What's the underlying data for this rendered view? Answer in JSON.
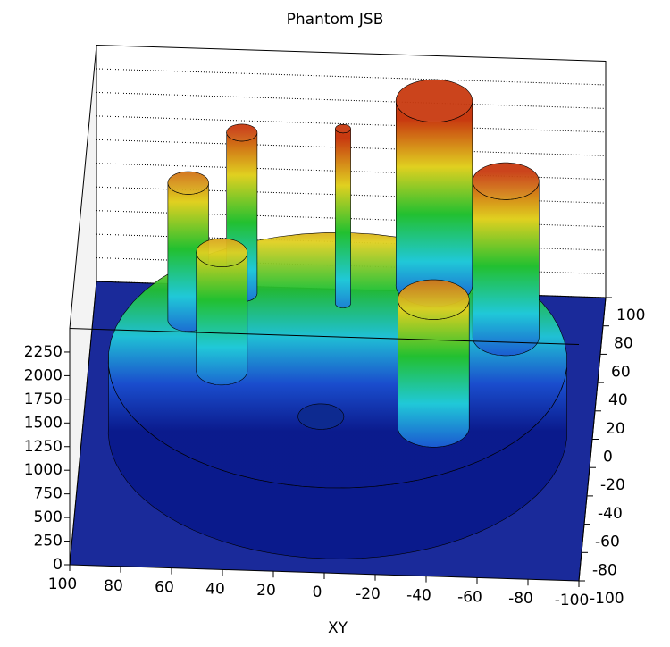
{
  "chart_data": {
    "type": "lego",
    "title": "Phantom JSB",
    "x_label": "XY",
    "xlim": [
      100,
      -100
    ],
    "ylim": [
      -100,
      100
    ],
    "zlim": [
      0,
      2500
    ],
    "xticks": [
      100,
      80,
      60,
      40,
      20,
      0,
      -20,
      -40,
      -60,
      -80,
      -100
    ],
    "yticks": [
      -100,
      -80,
      -60,
      -40,
      -20,
      0,
      20,
      40,
      60,
      80,
      100
    ],
    "zticks": [
      0,
      250,
      500,
      750,
      1000,
      1250,
      1500,
      1750,
      2000,
      2250
    ],
    "grid": true,
    "colors": [
      "#0a1a8c",
      "#1a4fd0",
      "#20c8d8",
      "#22c030",
      "#e0d020",
      "#c83a10"
    ],
    "disk": {
      "x": 0,
      "y": 0,
      "radius": 90,
      "z": 750
    },
    "dip": {
      "x": 5,
      "y": -30,
      "radius": 9,
      "z": 600
    },
    "peaks": {
      "x": [
        60,
        40,
        45,
        0,
        -35,
        -65,
        -40
      ],
      "y": [
        25,
        45,
        -10,
        40,
        55,
        20,
        -45
      ],
      "radius": [
        8,
        6,
        10,
        3,
        15,
        13,
        14
      ],
      "z": [
        2200,
        2450,
        2000,
        2600,
        2700,
        2400,
        2100
      ]
    }
  }
}
